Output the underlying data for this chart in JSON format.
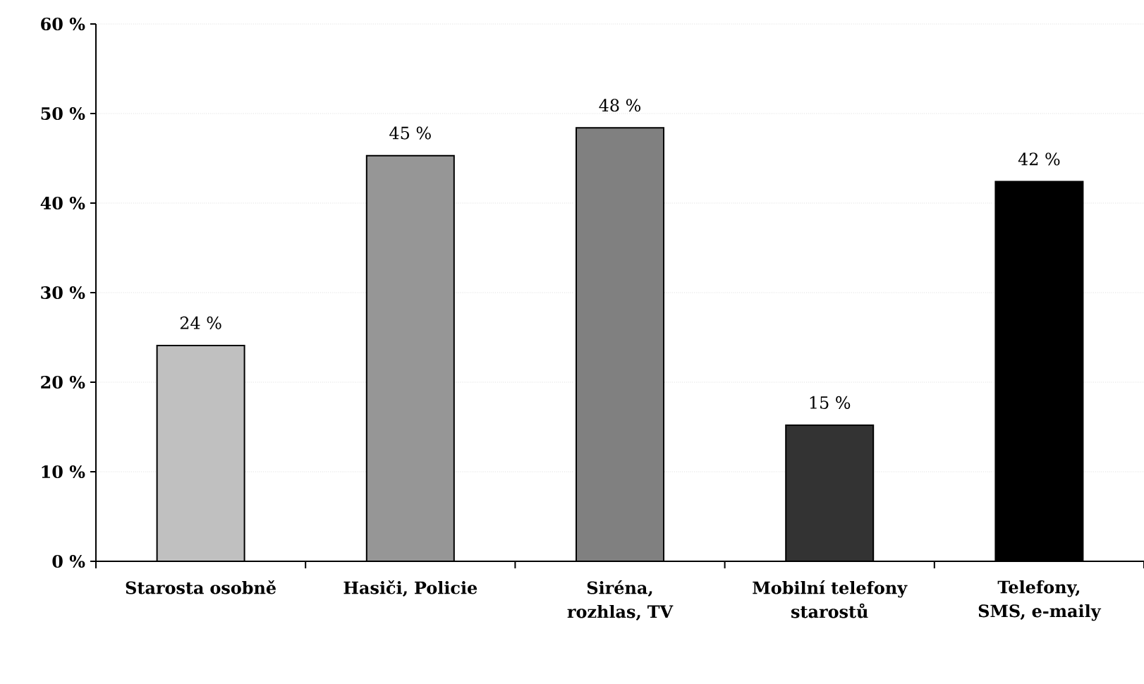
{
  "chart_data": {
    "type": "bar",
    "categories": [
      "Starosta osobně",
      "Hasiči, Policie",
      "Siréna, rozhlas, TV",
      "Mobilní telefony starostů",
      "Telefony, SMS, e-maily"
    ],
    "values": [
      24.1,
      45.3,
      48.4,
      15.2,
      42.4
    ],
    "colors": [
      "#c0c0c0",
      "#969696",
      "#808080",
      "#333333",
      "#000000"
    ],
    "value_labels": [
      "24 %",
      "45 %",
      "48 %",
      "15 %",
      "42 %"
    ],
    "ylim": [
      0,
      60
    ],
    "yticks": [
      {
        "value": 0,
        "label": "0 %"
      },
      {
        "value": 10,
        "label": "10 %"
      },
      {
        "value": 20,
        "label": "20 %"
      },
      {
        "value": 30,
        "label": "30 %"
      },
      {
        "value": 40,
        "label": "40 %"
      },
      {
        "value": 50,
        "label": "50 %"
      },
      {
        "value": 60,
        "label": "60 %"
      }
    ],
    "grid": "y"
  }
}
